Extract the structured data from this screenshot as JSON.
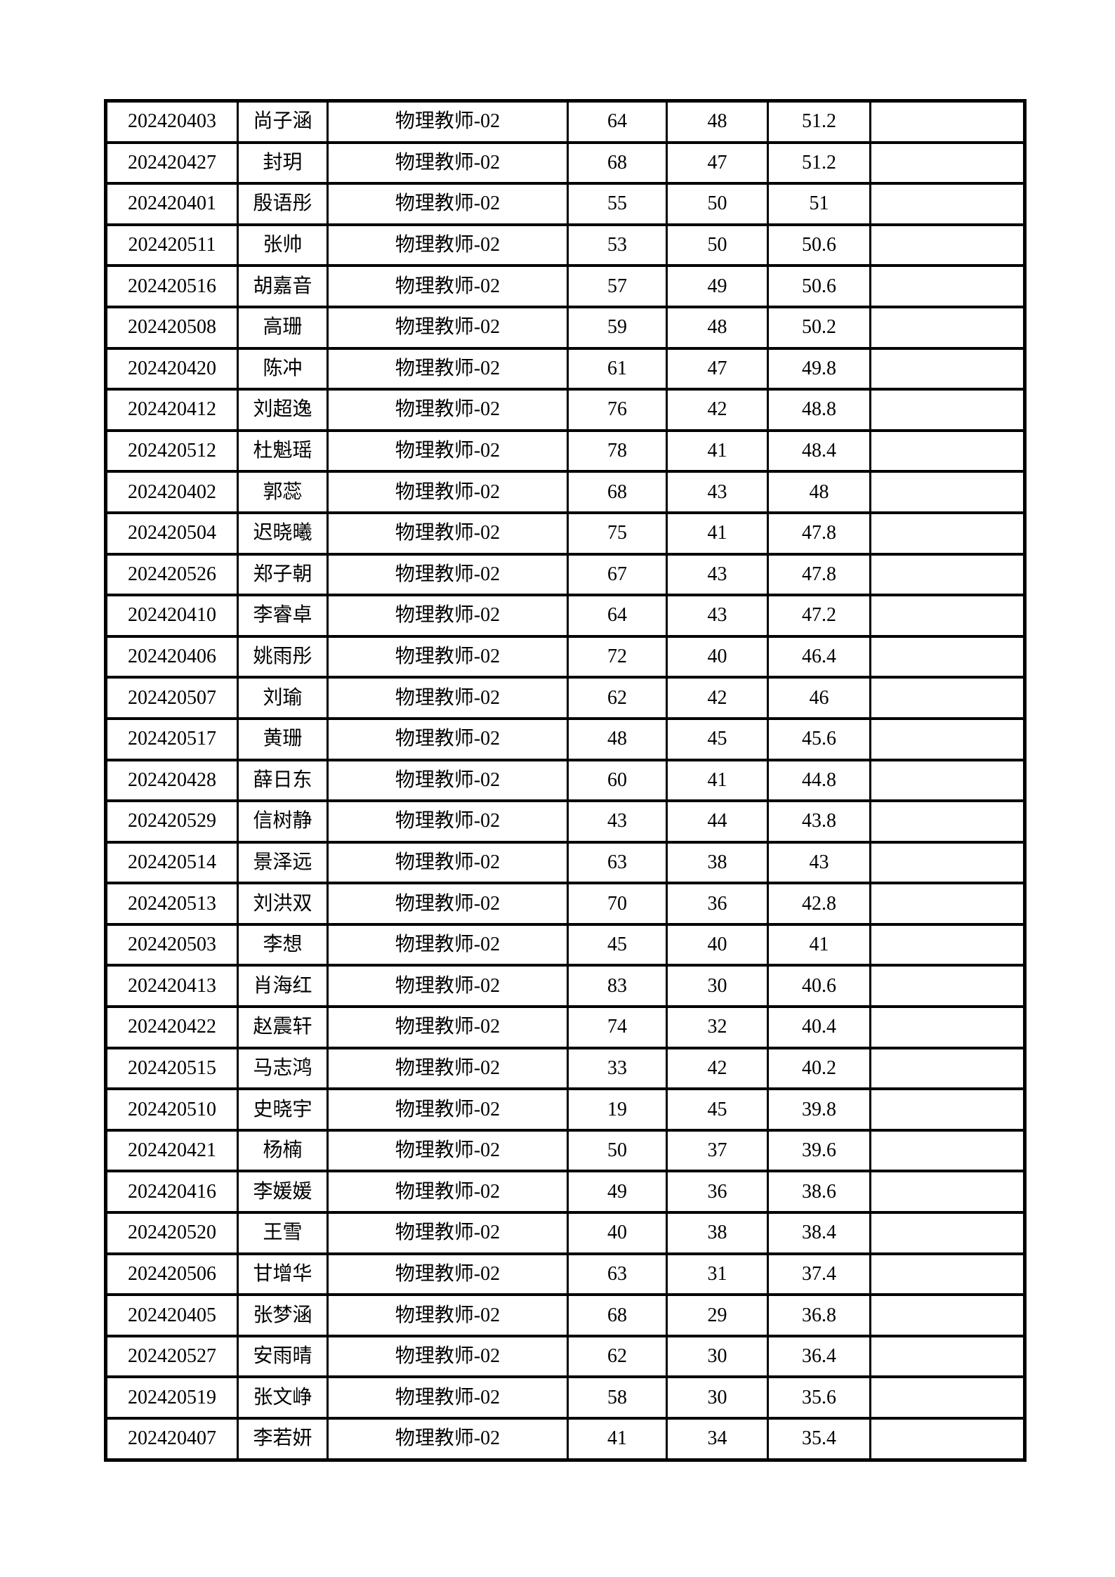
{
  "page": {
    "background_color": "#ffffff",
    "text_color": "#000000",
    "border_color": "#000000"
  },
  "table": {
    "columns": [
      "exam_number",
      "name",
      "position",
      "score1",
      "score2",
      "final_score",
      "blank"
    ],
    "rows": [
      [
        "202420403",
        "尚子涵",
        "物理教师-02",
        "64",
        "48",
        "51.2",
        ""
      ],
      [
        "202420427",
        "封玥",
        "物理教师-02",
        "68",
        "47",
        "51.2",
        ""
      ],
      [
        "202420401",
        "殷语彤",
        "物理教师-02",
        "55",
        "50",
        "51",
        ""
      ],
      [
        "202420511",
        "张帅",
        "物理教师-02",
        "53",
        "50",
        "50.6",
        ""
      ],
      [
        "202420516",
        "胡嘉音",
        "物理教师-02",
        "57",
        "49",
        "50.6",
        ""
      ],
      [
        "202420508",
        "高珊",
        "物理教师-02",
        "59",
        "48",
        "50.2",
        ""
      ],
      [
        "202420420",
        "陈冲",
        "物理教师-02",
        "61",
        "47",
        "49.8",
        ""
      ],
      [
        "202420412",
        "刘超逸",
        "物理教师-02",
        "76",
        "42",
        "48.8",
        ""
      ],
      [
        "202420512",
        "杜魁瑶",
        "物理教师-02",
        "78",
        "41",
        "48.4",
        ""
      ],
      [
        "202420402",
        "郭蕊",
        "物理教师-02",
        "68",
        "43",
        "48",
        ""
      ],
      [
        "202420504",
        "迟晓曦",
        "物理教师-02",
        "75",
        "41",
        "47.8",
        ""
      ],
      [
        "202420526",
        "郑子朝",
        "物理教师-02",
        "67",
        "43",
        "47.8",
        ""
      ],
      [
        "202420410",
        "李睿卓",
        "物理教师-02",
        "64",
        "43",
        "47.2",
        ""
      ],
      [
        "202420406",
        "姚雨彤",
        "物理教师-02",
        "72",
        "40",
        "46.4",
        ""
      ],
      [
        "202420507",
        "刘瑜",
        "物理教师-02",
        "62",
        "42",
        "46",
        ""
      ],
      [
        "202420517",
        "黄珊",
        "物理教师-02",
        "48",
        "45",
        "45.6",
        ""
      ],
      [
        "202420428",
        "薛日东",
        "物理教师-02",
        "60",
        "41",
        "44.8",
        ""
      ],
      [
        "202420529",
        "信树静",
        "物理教师-02",
        "43",
        "44",
        "43.8",
        ""
      ],
      [
        "202420514",
        "景泽远",
        "物理教师-02",
        "63",
        "38",
        "43",
        ""
      ],
      [
        "202420513",
        "刘洪双",
        "物理教师-02",
        "70",
        "36",
        "42.8",
        ""
      ],
      [
        "202420503",
        "李想",
        "物理教师-02",
        "45",
        "40",
        "41",
        ""
      ],
      [
        "202420413",
        "肖海红",
        "物理教师-02",
        "83",
        "30",
        "40.6",
        ""
      ],
      [
        "202420422",
        "赵震轩",
        "物理教师-02",
        "74",
        "32",
        "40.4",
        ""
      ],
      [
        "202420515",
        "马志鸿",
        "物理教师-02",
        "33",
        "42",
        "40.2",
        ""
      ],
      [
        "202420510",
        "史晓宇",
        "物理教师-02",
        "19",
        "45",
        "39.8",
        ""
      ],
      [
        "202420421",
        "杨楠",
        "物理教师-02",
        "50",
        "37",
        "39.6",
        ""
      ],
      [
        "202420416",
        "李媛媛",
        "物理教师-02",
        "49",
        "36",
        "38.6",
        ""
      ],
      [
        "202420520",
        "王雪",
        "物理教师-02",
        "40",
        "38",
        "38.4",
        ""
      ],
      [
        "202420506",
        "甘增华",
        "物理教师-02",
        "63",
        "31",
        "37.4",
        ""
      ],
      [
        "202420405",
        "张梦涵",
        "物理教师-02",
        "68",
        "29",
        "36.8",
        ""
      ],
      [
        "202420527",
        "安雨晴",
        "物理教师-02",
        "62",
        "30",
        "36.4",
        ""
      ],
      [
        "202420519",
        "张文峥",
        "物理教师-02",
        "58",
        "30",
        "35.6",
        ""
      ],
      [
        "202420407",
        "李若妍",
        "物理教师-02",
        "41",
        "34",
        "35.4",
        ""
      ]
    ]
  }
}
